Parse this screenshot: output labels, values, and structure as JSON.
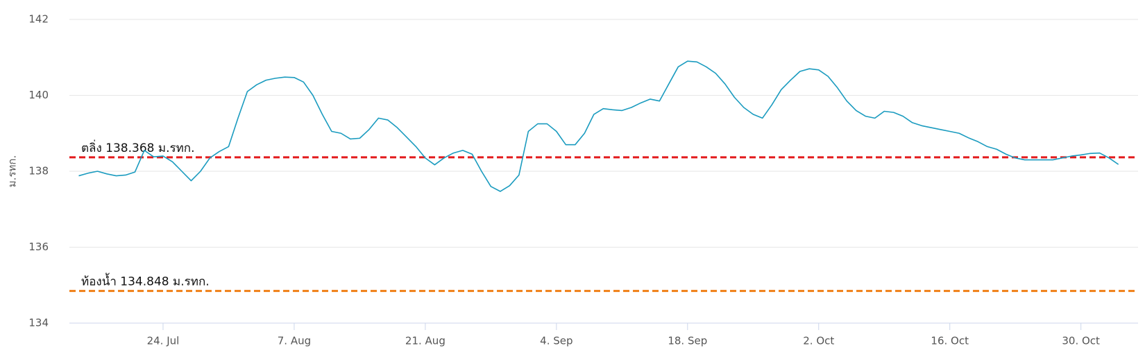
{
  "chart_data": {
    "type": "line",
    "y_label": "ม.รทก.",
    "categories": [
      null,
      null,
      null,
      null,
      null,
      null,
      null,
      null,
      null,
      "24. Jul",
      null,
      null,
      null,
      null,
      null,
      null,
      null,
      null,
      null,
      null,
      null,
      null,
      null,
      "7. Aug",
      null,
      null,
      null,
      null,
      null,
      null,
      null,
      null,
      null,
      null,
      null,
      null,
      null,
      "21. Aug",
      null,
      null,
      null,
      null,
      null,
      null,
      null,
      null,
      null,
      null,
      null,
      null,
      null,
      "4. Sep",
      null,
      null,
      null,
      null,
      null,
      null,
      null,
      null,
      null,
      null,
      null,
      null,
      null,
      "18. Sep",
      null,
      null,
      null,
      null,
      null,
      null,
      null,
      null,
      null,
      null,
      null,
      null,
      null,
      "2. Oct",
      null,
      null,
      null,
      null,
      null,
      null,
      null,
      null,
      null,
      null,
      null,
      null,
      null,
      "16. Oct",
      null,
      null,
      null,
      null,
      null,
      null,
      null,
      null,
      null,
      null,
      null,
      null,
      null,
      "30. Oct",
      null,
      null,
      null,
      null
    ],
    "values": [
      137.88,
      137.95,
      138.0,
      137.93,
      137.88,
      137.9,
      137.98,
      138.55,
      138.38,
      138.4,
      138.25,
      138.0,
      137.75,
      138.0,
      138.35,
      138.52,
      138.65,
      139.4,
      140.1,
      140.28,
      140.4,
      140.45,
      140.48,
      140.47,
      140.35,
      140.0,
      139.5,
      139.05,
      139.0,
      138.85,
      138.87,
      139.1,
      139.4,
      139.35,
      139.15,
      138.9,
      138.65,
      138.35,
      138.17,
      138.35,
      138.48,
      138.55,
      138.45,
      138.0,
      137.6,
      137.47,
      137.62,
      137.9,
      139.05,
      139.25,
      139.25,
      139.05,
      138.7,
      138.7,
      139.0,
      139.5,
      139.65,
      139.62,
      139.6,
      139.68,
      139.8,
      139.9,
      139.85,
      140.3,
      140.75,
      140.9,
      140.88,
      140.75,
      140.58,
      140.3,
      139.95,
      139.68,
      139.5,
      139.4,
      139.75,
      140.15,
      140.4,
      140.63,
      140.7,
      140.67,
      140.5,
      140.2,
      139.85,
      139.6,
      139.45,
      139.4,
      139.58,
      139.55,
      139.45,
      139.28,
      139.2,
      139.15,
      139.1,
      139.05,
      139.0,
      138.88,
      138.78,
      138.65,
      138.58,
      138.45,
      138.35,
      138.3,
      138.3,
      138.3,
      138.3,
      138.35,
      138.4,
      138.43,
      138.47,
      138.48,
      138.35,
      138.18
    ],
    "color": "#1a9bbf",
    "ylim": [
      134,
      142
    ],
    "yticks": [
      134,
      136,
      138,
      140,
      142
    ],
    "grid": true,
    "reference_lines": [
      {
        "label": "ตลิ่ง 138.368 ม.รทก.",
        "value": 138.368,
        "color": "#e31a1c"
      },
      {
        "label": "ท้องน้ำ 134.848 ม.รทก.",
        "value": 134.848,
        "color": "#f07f16"
      }
    ]
  }
}
